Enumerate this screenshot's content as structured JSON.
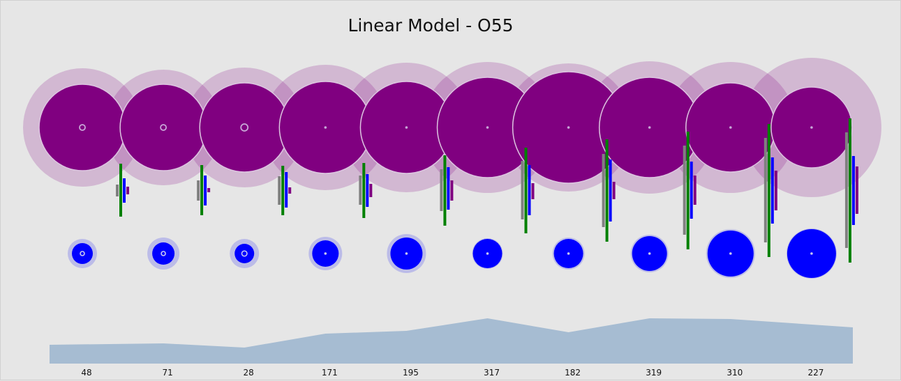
{
  "chart_data": {
    "type": "bubble-timeline",
    "title": "Linear Model - O55",
    "categories": [
      "48",
      "71",
      "28",
      "171",
      "195",
      "317",
      "182",
      "319",
      "310",
      "227"
    ],
    "colors": {
      "outer_halo": "#d4b6d5",
      "outer_core": "#800080",
      "inner_halo": "#bcbce8",
      "inner_core": "#0000ff",
      "ring": "#c8a8d8",
      "bar_gray": "#808080",
      "bar_green": "#008000",
      "bar_blue": "#0000ff",
      "bar_purple": "#800080",
      "area": "#a6bcd2"
    },
    "series": [
      {
        "name": "outer_halo",
        "values": [
          85,
          83,
          86,
          90,
          93,
          94,
          92,
          95,
          94,
          100
        ]
      },
      {
        "name": "outer_core",
        "values": [
          62,
          62,
          64,
          66,
          66,
          72,
          80,
          72,
          64,
          58
        ]
      },
      {
        "name": "center_ring",
        "values": [
          4,
          4,
          5,
          2,
          2,
          2,
          2,
          2,
          2,
          2
        ]
      },
      {
        "name": "inner_halo",
        "values": [
          21,
          23,
          21,
          24,
          28,
          22,
          23,
          27,
          35,
          36
        ]
      },
      {
        "name": "inner_core",
        "values": [
          15,
          16,
          14,
          19,
          23,
          21,
          21,
          25,
          33,
          35
        ]
      },
      {
        "name": "bar_gray",
        "values": [
          [
            264,
            281
          ],
          [
            258,
            287
          ],
          [
            252,
            293
          ],
          [
            251,
            293
          ],
          [
            242,
            302
          ],
          [
            230,
            314
          ],
          [
            220,
            325
          ],
          [
            208,
            336
          ],
          [
            197,
            347
          ],
          [
            189,
            355
          ]
        ]
      },
      {
        "name": "bar_green",
        "values": [
          [
            234,
            310
          ],
          [
            236,
            308
          ],
          [
            237,
            308
          ],
          [
            233,
            312
          ],
          [
            222,
            323
          ],
          [
            211,
            334
          ],
          [
            199,
            346
          ],
          [
            188,
            357
          ],
          [
            177,
            368
          ],
          [
            169,
            376
          ]
        ]
      },
      {
        "name": "bar_blue",
        "values": [
          [
            255,
            290
          ],
          [
            251,
            294
          ],
          [
            246,
            297
          ],
          [
            249,
            296
          ],
          [
            239,
            300
          ],
          [
            236,
            308
          ],
          [
            228,
            317
          ],
          [
            231,
            313
          ],
          [
            225,
            320
          ],
          [
            223,
            322
          ]
        ]
      },
      {
        "name": "bar_purple",
        "values": [
          [
            267,
            278
          ],
          [
            269,
            275
          ],
          [
            268,
            277
          ],
          [
            263,
            282
          ],
          [
            258,
            287
          ],
          [
            262,
            285
          ],
          [
            260,
            285
          ],
          [
            251,
            293
          ],
          [
            244,
            301
          ],
          [
            238,
            306
          ]
        ]
      },
      {
        "name": "area",
        "values": [
          27,
          29,
          23,
          43,
          47,
          65,
          45,
          65,
          64,
          52
        ]
      }
    ],
    "grid": false,
    "legend": "none"
  }
}
